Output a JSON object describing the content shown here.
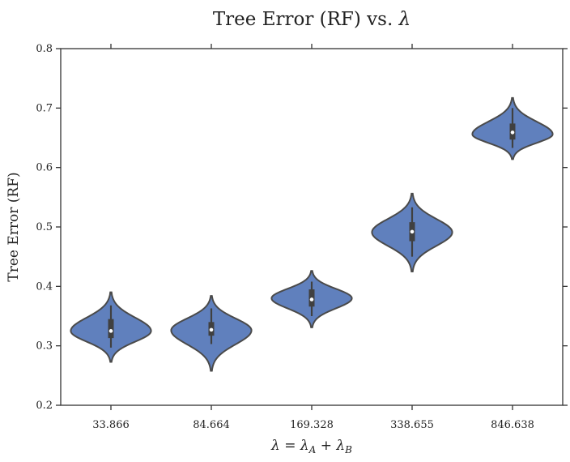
{
  "chart_data": {
    "type": "violin",
    "title": "Tree Error (RF) vs. λ",
    "xlabel": "λ = λ_A + λ_B",
    "ylabel": "Tree Error (RF)",
    "ylim": [
      0.2,
      0.8
    ],
    "yticks": [
      0.2,
      0.3,
      0.4,
      0.5,
      0.6,
      0.7,
      0.8
    ],
    "grid": false,
    "color": "#6080bd",
    "categories": [
      "33.866",
      "84.664",
      "169.328",
      "338.655",
      "846.638"
    ],
    "violins": [
      {
        "category": "33.866",
        "min": 0.273,
        "max": 0.39,
        "mode": 0.325,
        "whisker_low": 0.297,
        "whisker_high": 0.368,
        "q1": 0.313,
        "q3": 0.345,
        "median": 0.325
      },
      {
        "category": "84.664",
        "min": 0.258,
        "max": 0.384,
        "mode": 0.326,
        "whisker_low": 0.303,
        "whisker_high": 0.363,
        "q1": 0.317,
        "q3": 0.34,
        "median": 0.327
      },
      {
        "category": "169.328",
        "min": 0.331,
        "max": 0.426,
        "mode": 0.38,
        "whisker_low": 0.35,
        "whisker_high": 0.408,
        "q1": 0.366,
        "q3": 0.395,
        "median": 0.378
      },
      {
        "category": "338.655",
        "min": 0.425,
        "max": 0.556,
        "mode": 0.491,
        "whisker_low": 0.45,
        "whisker_high": 0.533,
        "q1": 0.476,
        "q3": 0.508,
        "median": 0.492
      },
      {
        "category": "846.638",
        "min": 0.614,
        "max": 0.717,
        "mode": 0.656,
        "whisker_low": 0.633,
        "whisker_high": 0.7,
        "q1": 0.647,
        "q3": 0.674,
        "median": 0.659
      }
    ]
  }
}
